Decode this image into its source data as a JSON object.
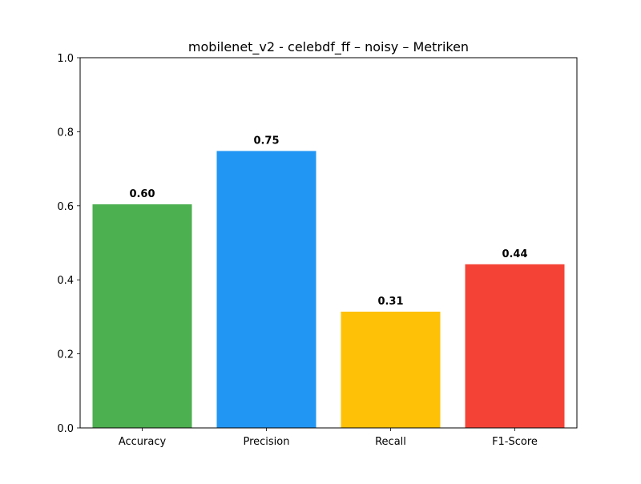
{
  "chart_data": {
    "type": "bar",
    "title": "mobilenet_v2 - celebdf_ff – noisy – Metriken",
    "xlabel": "",
    "ylabel": "",
    "categories": [
      "Accuracy",
      "Precision",
      "Recall",
      "F1-Score"
    ],
    "values": [
      0.604,
      0.748,
      0.314,
      0.442
    ],
    "value_labels": [
      "0.60",
      "0.75",
      "0.31",
      "0.44"
    ],
    "colors": [
      "#4caf50",
      "#2196f3",
      "#ffc107",
      "#f44336"
    ],
    "ylim": [
      0,
      1
    ],
    "yticks": [
      0.0,
      0.2,
      0.4,
      0.6,
      0.8,
      1.0
    ],
    "ytick_labels": [
      "0.0",
      "0.2",
      "0.4",
      "0.6",
      "0.8",
      "1.0"
    ],
    "grid": false,
    "legend": "none"
  }
}
